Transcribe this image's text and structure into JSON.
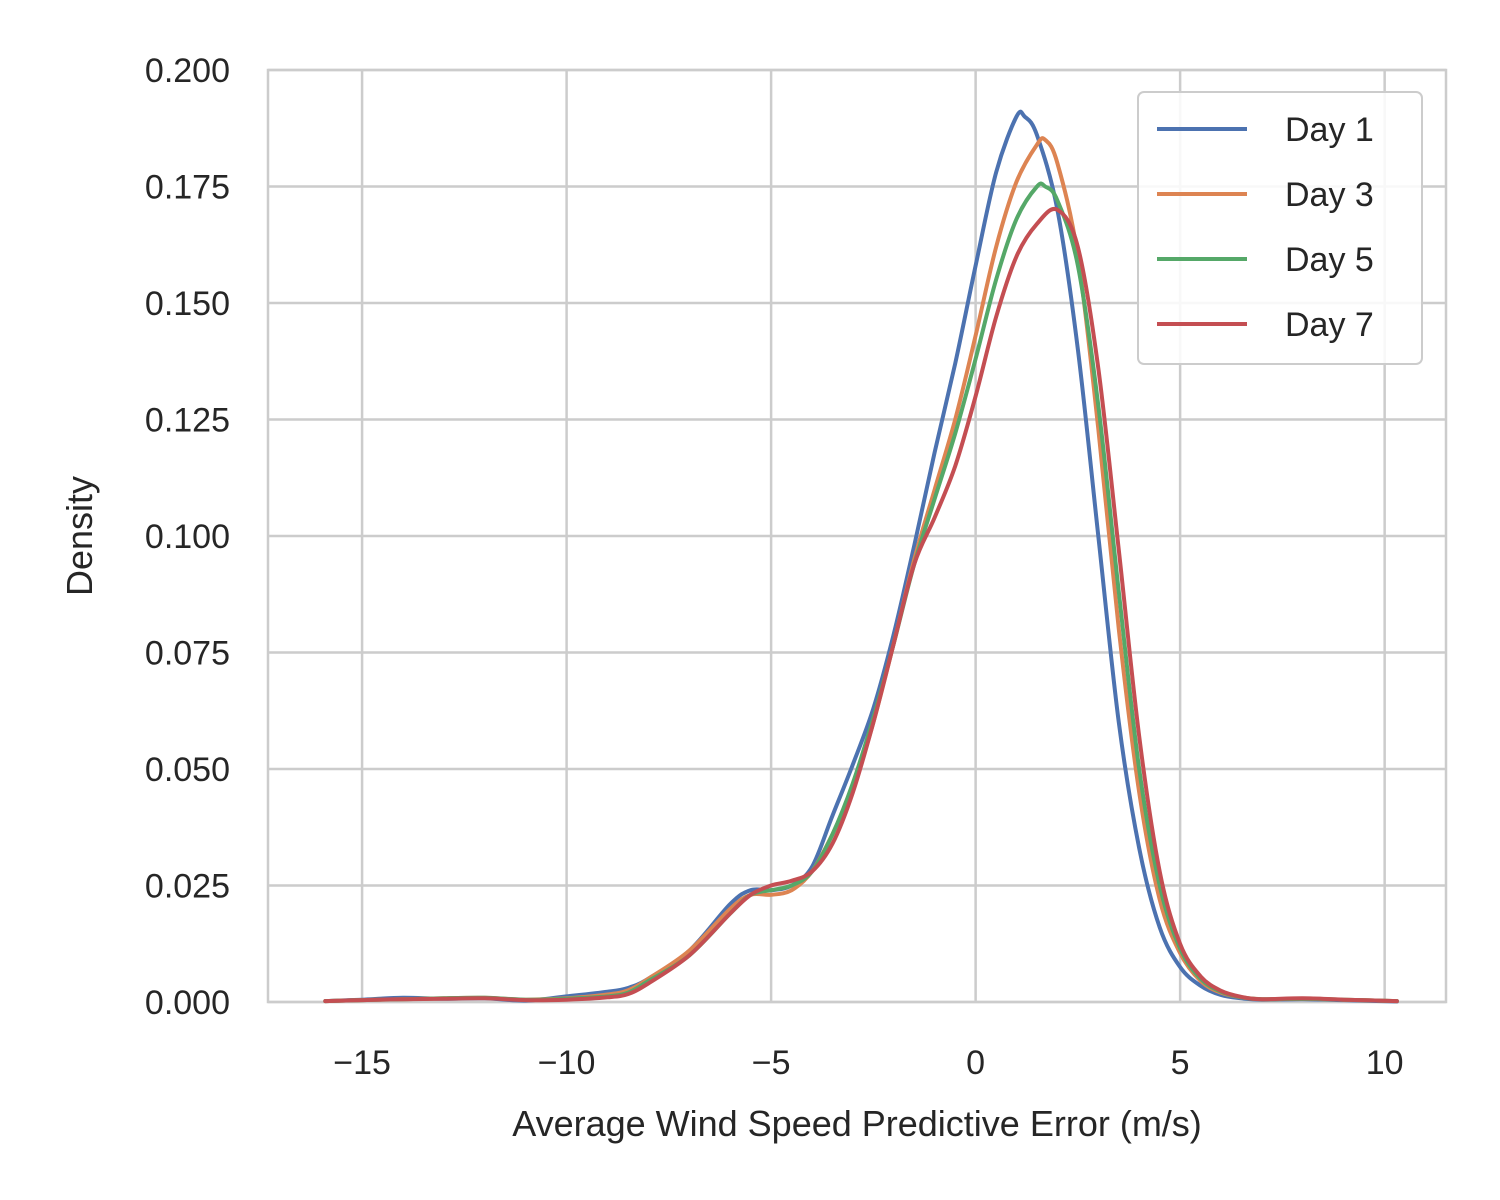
{
  "chart_data": {
    "type": "line",
    "title": "",
    "xlabel": "Average Wind Speed Predictive Error (m/s)",
    "ylabel": "Density",
    "xlim": [
      -17.3,
      11.5
    ],
    "ylim": [
      0,
      0.2
    ],
    "x_ticks": [
      -15,
      -10,
      -5,
      0,
      5,
      10
    ],
    "x_tick_labels": [
      "−15",
      "−10",
      "−5",
      "0",
      "5",
      "10"
    ],
    "y_ticks": [
      0,
      0.025,
      0.05,
      0.075,
      0.1,
      0.125,
      0.15,
      0.175,
      0.2
    ],
    "y_tick_labels": [
      "0.000",
      "0.025",
      "0.050",
      "0.075",
      "0.100",
      "0.125",
      "0.150",
      "0.175",
      "0.200"
    ],
    "grid": true,
    "legend_position": "top-right",
    "series": [
      {
        "name": "Day 1",
        "color": "#4c72b0",
        "points": [
          [
            -15.9,
            0.0002
          ],
          [
            -15,
            0.0005
          ],
          [
            -14,
            0.0009
          ],
          [
            -13,
            0.0007
          ],
          [
            -12,
            0.0008
          ],
          [
            -11,
            0.0003
          ],
          [
            -10,
            0.0012
          ],
          [
            -9,
            0.0022
          ],
          [
            -8.5,
            0.003
          ],
          [
            -8,
            0.005
          ],
          [
            -7,
            0.011
          ],
          [
            -6,
            0.021
          ],
          [
            -5.5,
            0.024
          ],
          [
            -5,
            0.024
          ],
          [
            -4.5,
            0.025
          ],
          [
            -4,
            0.029
          ],
          [
            -3.5,
            0.04
          ],
          [
            -3,
            0.051
          ],
          [
            -2.5,
            0.063
          ],
          [
            -2,
            0.079
          ],
          [
            -1.5,
            0.098
          ],
          [
            -1,
            0.118
          ],
          [
            -0.5,
            0.137
          ],
          [
            0,
            0.158
          ],
          [
            0.5,
            0.178
          ],
          [
            1,
            0.19
          ],
          [
            1.2,
            0.19
          ],
          [
            1.5,
            0.186
          ],
          [
            2,
            0.17
          ],
          [
            2.5,
            0.14
          ],
          [
            3,
            0.1
          ],
          [
            3.5,
            0.06
          ],
          [
            4,
            0.033
          ],
          [
            4.5,
            0.016
          ],
          [
            5,
            0.0075
          ],
          [
            5.5,
            0.0035
          ],
          [
            6,
            0.0015
          ],
          [
            6.5,
            0.0008
          ],
          [
            7,
            0.0005
          ],
          [
            8,
            0.0006
          ],
          [
            9,
            0.0004
          ],
          [
            10.3,
            0.0001
          ]
        ]
      },
      {
        "name": "Day 3",
        "color": "#dd8452",
        "points": [
          [
            -15.9,
            0.0002
          ],
          [
            -15,
            0.0004
          ],
          [
            -14,
            0.0006
          ],
          [
            -13,
            0.0008
          ],
          [
            -12,
            0.0009
          ],
          [
            -11,
            0.0005
          ],
          [
            -10,
            0.0008
          ],
          [
            -9,
            0.0016
          ],
          [
            -8.5,
            0.0025
          ],
          [
            -8,
            0.005
          ],
          [
            -7,
            0.011
          ],
          [
            -6,
            0.02
          ],
          [
            -5.5,
            0.023
          ],
          [
            -5,
            0.023
          ],
          [
            -4.5,
            0.024
          ],
          [
            -4,
            0.028
          ],
          [
            -3.5,
            0.036
          ],
          [
            -3,
            0.046
          ],
          [
            -2.5,
            0.06
          ],
          [
            -2,
            0.077
          ],
          [
            -1.5,
            0.095
          ],
          [
            -1,
            0.11
          ],
          [
            -0.5,
            0.125
          ],
          [
            0,
            0.143
          ],
          [
            0.5,
            0.162
          ],
          [
            1,
            0.176
          ],
          [
            1.5,
            0.184
          ],
          [
            1.7,
            0.185
          ],
          [
            2,
            0.18
          ],
          [
            2.5,
            0.16
          ],
          [
            3,
            0.123
          ],
          [
            3.5,
            0.08
          ],
          [
            4,
            0.045
          ],
          [
            4.5,
            0.022
          ],
          [
            5,
            0.0105
          ],
          [
            5.5,
            0.0045
          ],
          [
            6,
            0.002
          ],
          [
            6.5,
            0.001
          ],
          [
            7,
            0.0006
          ],
          [
            8,
            0.0007
          ],
          [
            9,
            0.0005
          ],
          [
            10.3,
            0.0002
          ]
        ]
      },
      {
        "name": "Day 5",
        "color": "#55a868",
        "points": [
          [
            -15.9,
            0.0002
          ],
          [
            -15,
            0.0004
          ],
          [
            -14,
            0.0006
          ],
          [
            -13,
            0.0008
          ],
          [
            -12,
            0.0009
          ],
          [
            -11,
            0.0005
          ],
          [
            -10,
            0.0007
          ],
          [
            -9,
            0.0012
          ],
          [
            -8.5,
            0.002
          ],
          [
            -8,
            0.0045
          ],
          [
            -7,
            0.01
          ],
          [
            -6,
            0.019
          ],
          [
            -5.5,
            0.023
          ],
          [
            -5,
            0.024
          ],
          [
            -4.5,
            0.025
          ],
          [
            -4,
            0.028
          ],
          [
            -3.5,
            0.036
          ],
          [
            -3,
            0.047
          ],
          [
            -2.5,
            0.061
          ],
          [
            -2,
            0.077
          ],
          [
            -1.5,
            0.094
          ],
          [
            -1,
            0.108
          ],
          [
            -0.5,
            0.122
          ],
          [
            0,
            0.138
          ],
          [
            0.5,
            0.155
          ],
          [
            1,
            0.168
          ],
          [
            1.5,
            0.175
          ],
          [
            1.7,
            0.175
          ],
          [
            2,
            0.172
          ],
          [
            2.5,
            0.158
          ],
          [
            3,
            0.128
          ],
          [
            3.5,
            0.088
          ],
          [
            4,
            0.05
          ],
          [
            4.5,
            0.025
          ],
          [
            5,
            0.0115
          ],
          [
            5.5,
            0.005
          ],
          [
            6,
            0.0022
          ],
          [
            6.5,
            0.001
          ],
          [
            7,
            0.0006
          ],
          [
            8,
            0.0007
          ],
          [
            9,
            0.0005
          ],
          [
            10.3,
            0.0002
          ]
        ]
      },
      {
        "name": "Day 7",
        "color": "#c44e52",
        "points": [
          [
            -15.9,
            0.0002
          ],
          [
            -15,
            0.0004
          ],
          [
            -14,
            0.0006
          ],
          [
            -13,
            0.0007
          ],
          [
            -12,
            0.0008
          ],
          [
            -11,
            0.0004
          ],
          [
            -10,
            0.0005
          ],
          [
            -9,
            0.001
          ],
          [
            -8.5,
            0.0017
          ],
          [
            -8,
            0.004
          ],
          [
            -7,
            0.01
          ],
          [
            -6,
            0.019
          ],
          [
            -5.5,
            0.023
          ],
          [
            -5,
            0.025
          ],
          [
            -4.5,
            0.026
          ],
          [
            -4,
            0.028
          ],
          [
            -3.5,
            0.034
          ],
          [
            -3,
            0.045
          ],
          [
            -2.5,
            0.06
          ],
          [
            -2,
            0.077
          ],
          [
            -1.5,
            0.094
          ],
          [
            -1,
            0.104
          ],
          [
            -0.5,
            0.115
          ],
          [
            0,
            0.13
          ],
          [
            0.5,
            0.147
          ],
          [
            1,
            0.16
          ],
          [
            1.5,
            0.167
          ],
          [
            2,
            0.17
          ],
          [
            2.5,
            0.162
          ],
          [
            3,
            0.136
          ],
          [
            3.5,
            0.097
          ],
          [
            4,
            0.057
          ],
          [
            4.5,
            0.028
          ],
          [
            5,
            0.0125
          ],
          [
            5.5,
            0.0055
          ],
          [
            6,
            0.0024
          ],
          [
            6.5,
            0.0011
          ],
          [
            7,
            0.0006
          ],
          [
            8,
            0.0008
          ],
          [
            9,
            0.0005
          ],
          [
            10.3,
            0.0002
          ]
        ]
      }
    ]
  }
}
